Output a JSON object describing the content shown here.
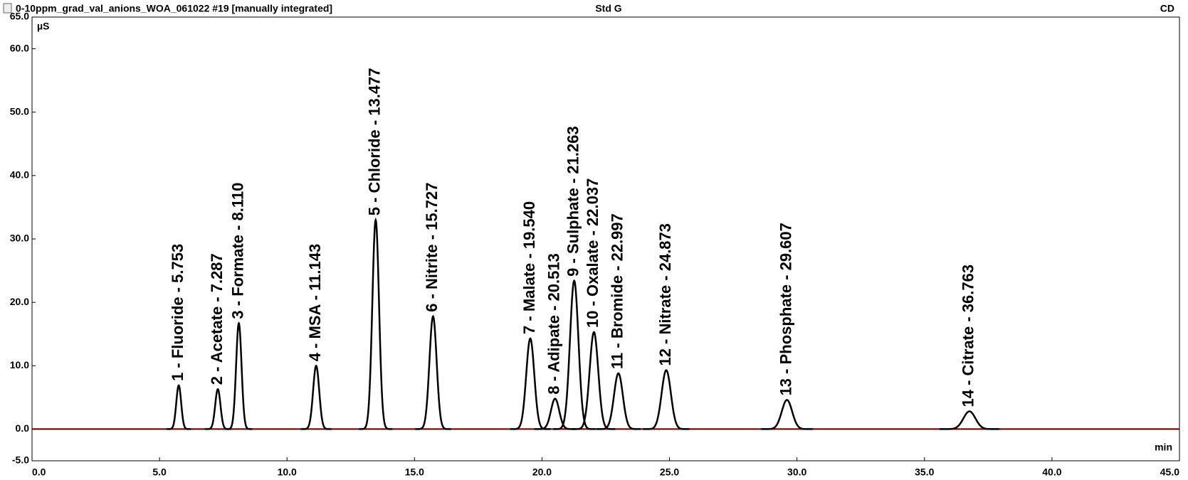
{
  "chart_data": {
    "type": "chromatogram",
    "title": "0-10ppm_grad_val_anions_WOA_061022 #19 [manually integrated]",
    "subtitle": "Std G",
    "detector": "CD",
    "y_label": "µS",
    "x_label": "min",
    "color": "#000000",
    "baseline_color": "#cc0000",
    "xlim": [
      0,
      45
    ],
    "xticks": [
      {
        "value": 0,
        "label": "0.0"
      },
      {
        "value": 5,
        "label": "5.0"
      },
      {
        "value": 10,
        "label": "10.0"
      },
      {
        "value": 15,
        "label": "15.0"
      },
      {
        "value": 20,
        "label": "20.0"
      },
      {
        "value": 25,
        "label": "25.0"
      },
      {
        "value": 30,
        "label": "30.0"
      },
      {
        "value": 35,
        "label": "35.0"
      },
      {
        "value": 40,
        "label": "40.0"
      },
      {
        "value": 45,
        "label": "45.0"
      }
    ],
    "ylim": [
      -5,
      65
    ],
    "yticks": [
      {
        "value": -5,
        "label": "-5.0"
      },
      {
        "value": 0,
        "label": "0.0"
      },
      {
        "value": 10,
        "label": "10.0"
      },
      {
        "value": 20,
        "label": "20.0"
      },
      {
        "value": 30,
        "label": "30.0"
      },
      {
        "value": 40,
        "label": "40.0"
      },
      {
        "value": 50,
        "label": "50.0"
      },
      {
        "value": 60,
        "label": "60.0"
      },
      {
        "value": 65,
        "label": "65.0"
      }
    ],
    "peaks": [
      {
        "label": "1 - Fluoride - 5.753",
        "time": 5.753,
        "height": 6.9
      },
      {
        "label": "2 - Acetate - 7.287",
        "time": 7.287,
        "height": 6.3
      },
      {
        "label": "3 - Formate - 8.110",
        "time": 8.11,
        "height": 16.7
      },
      {
        "label": "4 - MSA - 11.143",
        "time": 11.143,
        "height": 10.0
      },
      {
        "label": "5 - Chloride - 13.477",
        "time": 13.477,
        "height": 33.0
      },
      {
        "label": "6 - Nitrite - 15.727",
        "time": 15.727,
        "height": 17.8
      },
      {
        "label": "7 - Malate - 19.540",
        "time": 19.54,
        "height": 14.3
      },
      {
        "label": "8 - Adipate - 20.513",
        "time": 20.513,
        "height": 4.8
      },
      {
        "label": "9 - Sulphate - 21.263",
        "time": 21.263,
        "height": 23.4
      },
      {
        "label": "10 - Oxalate - 22.037",
        "time": 22.037,
        "height": 15.3
      },
      {
        "label": "11 - Bromide - 22.997",
        "time": 22.997,
        "height": 8.8
      },
      {
        "label": "12 - Nitrate - 24.873",
        "time": 24.873,
        "height": 9.3
      },
      {
        "label": "13 - Phosphate - 29.607",
        "time": 29.607,
        "height": 4.6
      },
      {
        "label": "14 - Citrate - 36.763",
        "time": 36.763,
        "height": 2.8
      }
    ]
  }
}
